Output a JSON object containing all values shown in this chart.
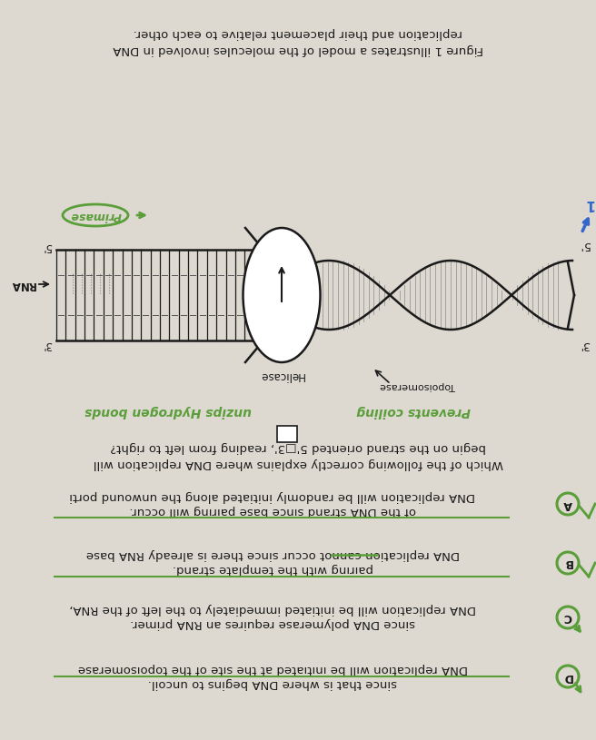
{
  "bg_color": "#ddd9d0",
  "green": "#5a9e3a",
  "dark": "#1a1a1a",
  "blue": "#3366cc",
  "fig_w": 656,
  "fig_h": 815,
  "caption": [
    "Figure 1 illustrates a model of the molecules involved in DNA",
    "replication and their placement relative to each other."
  ],
  "question_lines": [
    "Which of the following correctly explains where DNA replication will",
    "begin on the strand oriented 5'□3', reading from left to right?"
  ],
  "choices": [
    {
      "letter": "A",
      "lines": [
        "DNA replication will be randomly initiated along the unwound porti",
        "of the DNA strand since base pairing will occur."
      ],
      "underline_line": 1,
      "strikethrough": null
    },
    {
      "letter": "B",
      "lines": [
        "DNA replication cannot occur since there is already RNA base",
        "pairing with the template strand."
      ],
      "underline_line": 1,
      "strikethrough": "cannot"
    },
    {
      "letter": "C",
      "lines": [
        "DNA replication will be initiated immediately to the left of the RNA,",
        "since DNA polymerase requires an RNA primer."
      ],
      "underline_line": null,
      "strikethrough": null
    },
    {
      "letter": "D",
      "lines": [
        "DNA replication will be initiated at the site of the topoisomerase",
        "since that is where DNA begins to uncoil."
      ],
      "underline_line": 0,
      "strikethrough": null
    }
  ]
}
